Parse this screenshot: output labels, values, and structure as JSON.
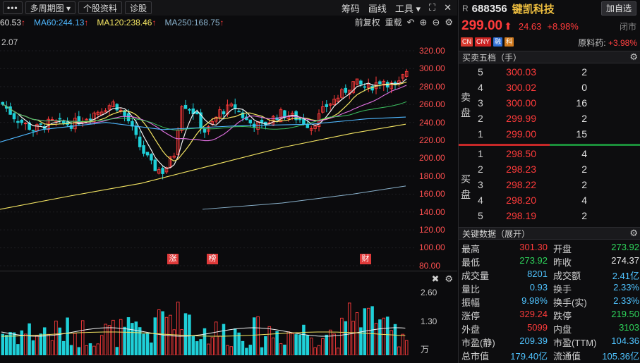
{
  "toolbar": {
    "menu_label": "•••",
    "period_label": "多周期图 ▾",
    "profile_label": "个股资料",
    "diagnose_label": "诊股",
    "chips_label": "筹码",
    "draw_label": "画线",
    "tools_label": "工具 ▾"
  },
  "ma": {
    "ma_cut": {
      "label": "60.53",
      "color": "#e8e8e8"
    },
    "ma60": {
      "label": "MA60:244.13",
      "color": "#4fb8ff"
    },
    "ma120": {
      "label": "MA120:238.46",
      "color": "#f5e663"
    },
    "ma250": {
      "label": "MA250:168.75",
      "color": "#8ab2cc"
    },
    "arrow": "↑",
    "adjust_label": "前复权",
    "reload_label": "重载"
  },
  "price_axis": [
    "320.00",
    "300.00",
    "280.00",
    "260.00",
    "240.00",
    "220.00",
    "200.00",
    "180.00",
    "160.00",
    "140.00",
    "120.00",
    "100.00",
    "80.00"
  ],
  "top_left_value": "2.07",
  "markers": [
    {
      "label": "涨"
    },
    {
      "label": "榜"
    },
    {
      "label": "财"
    }
  ],
  "volume_axis": {
    "top": "2.60",
    "mid": "1.30",
    "unit": "万"
  },
  "stock": {
    "prefix": "R",
    "code": "688356",
    "name": "键凯科技",
    "add_label": "加自选",
    "price": "299.00",
    "arrow": "⬆",
    "change": "24.63",
    "change_pct": "+8.98%",
    "status": "闭市",
    "concept_label": "原料药:",
    "concept_value": "+3.98%"
  },
  "badges": [
    {
      "label": "CN",
      "color": "#d63a2f"
    },
    {
      "label": "CNY",
      "color": "#c22"
    },
    {
      "label": "融",
      "color": "#2f6fd6"
    },
    {
      "label": "科",
      "color": "#d07a1e"
    }
  ],
  "orderbook": {
    "title": "买卖五档（手）",
    "sell_label": "卖盘",
    "buy_label": "买盘",
    "sell": [
      {
        "level": "5",
        "price": "300.03",
        "qty": "2"
      },
      {
        "level": "4",
        "price": "300.02",
        "qty": "0"
      },
      {
        "level": "3",
        "price": "300.00",
        "qty": "16"
      },
      {
        "level": "2",
        "price": "299.99",
        "qty": "2"
      },
      {
        "level": "1",
        "price": "299.00",
        "qty": "15"
      }
    ],
    "buy": [
      {
        "level": "1",
        "price": "298.50",
        "qty": "4"
      },
      {
        "level": "2",
        "price": "298.23",
        "qty": "2"
      },
      {
        "level": "3",
        "price": "298.22",
        "qty": "2"
      },
      {
        "level": "4",
        "price": "298.20",
        "qty": "4"
      },
      {
        "level": "5",
        "price": "298.19",
        "qty": "2"
      }
    ]
  },
  "key_data": {
    "title": "关键数据（展开）",
    "rows": [
      {
        "k1": "最高",
        "v1": "301.30",
        "c1": "red",
        "k2": "开盘",
        "v2": "273.92",
        "c2": "grn"
      },
      {
        "k1": "最低",
        "v1": "273.92",
        "c1": "grn",
        "k2": "昨收",
        "v2": "274.37",
        "c2": "wht"
      },
      {
        "k1": "成交量",
        "v1": "8201",
        "c1": "cyn",
        "k2": "成交额",
        "v2": "2.41亿",
        "c2": "cyn"
      },
      {
        "k1": "量比",
        "v1": "0.93",
        "c1": "cyn",
        "k2": "换手",
        "v2": "2.33%",
        "c2": "cyn"
      },
      {
        "k1": "振幅",
        "v1": "9.98%",
        "c1": "cyn",
        "k2": "换手(实)",
        "v2": "2.33%",
        "c2": "cyn"
      },
      {
        "k1": "涨停",
        "v1": "329.24",
        "c1": "red",
        "k2": "跌停",
        "v2": "219.50",
        "c2": "grn"
      },
      {
        "k1": "外盘",
        "v1": "5099",
        "c1": "red",
        "k2": "内盘",
        "v2": "3103",
        "c2": "grn"
      },
      {
        "k1": "市盈(静)",
        "v1": "209.39",
        "c1": "cyn",
        "k2": "市盈(TTM)",
        "v2": "104.36",
        "c2": "cyn"
      },
      {
        "k1": "总市值",
        "v1": "179.40亿",
        "c1": "cyn",
        "k2": "流通值",
        "v2": "105.36亿",
        "c2": "cyn"
      }
    ]
  }
}
